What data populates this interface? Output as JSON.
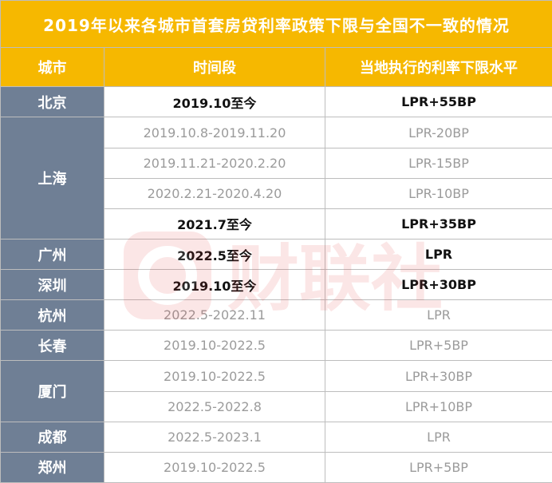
{
  "title": "2019年以来各城市首套房贷利率政策下限与全国不一致的情况",
  "headers": [
    "城市",
    "时间段",
    "当地执行的利率下限水平"
  ],
  "watermark_text": "财联社",
  "rows": [
    {
      "city": "北京",
      "period": "2019.10至今",
      "rate": "LPR+55BP",
      "bold": true
    },
    {
      "city": "上海",
      "period": "2019.10.8-2019.11.20",
      "rate": "LPR-20BP",
      "bold": false
    },
    {
      "city": "",
      "period": "2019.11.21-2020.2.20",
      "rate": "LPR-15BP",
      "bold": false
    },
    {
      "city": "",
      "period": "2020.2.21-2020.4.20",
      "rate": "LPR-10BP",
      "bold": false
    },
    {
      "city": "",
      "period": "2021.7至今",
      "rate": "LPR+35BP",
      "bold": true
    },
    {
      "city": "广州",
      "period": "2022.5至今",
      "rate": "LPR",
      "bold": true
    },
    {
      "city": "深圳",
      "period": "2019.10至今",
      "rate": "LPR+30BP",
      "bold": true
    },
    {
      "city": "杭州",
      "period": "2022.5-2022.11",
      "rate": "LPR",
      "bold": false
    },
    {
      "city": "长春",
      "period": "2019.10-2022.5",
      "rate": "LPR+5BP",
      "bold": false
    },
    {
      "city": "厦门",
      "period": "2019.10-2022.5",
      "rate": "LPR+30BP",
      "bold": false
    },
    {
      "city": "",
      "period": "2022.5-2022.8",
      "rate": "LPR+10BP",
      "bold": false
    },
    {
      "city": "成都",
      "period": "2022.5-2023.1",
      "rate": "LPR",
      "bold": false
    },
    {
      "city": "郑州",
      "period": "2019.10-2022.5",
      "rate": "LPR+5BP",
      "bold": false
    }
  ]
}
